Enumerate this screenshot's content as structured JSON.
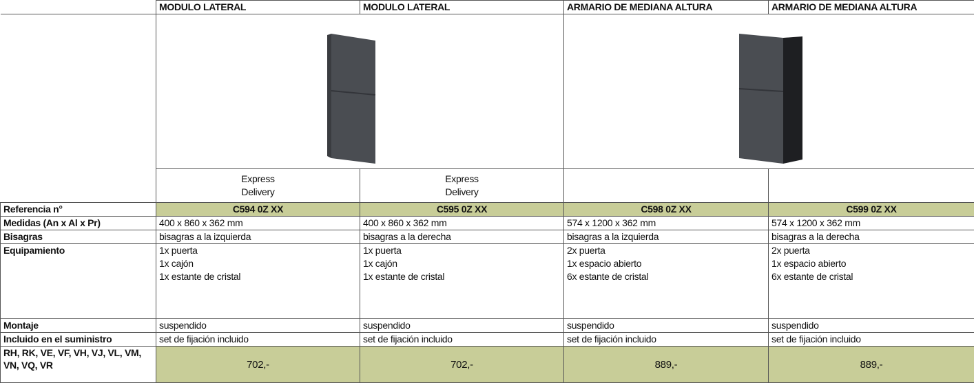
{
  "products": [
    {
      "name": "MODULO LATERAL",
      "badge": {
        "top": "Express",
        "bottom": "Delivery"
      }
    },
    {
      "name": "MODULO LATERAL",
      "badge": {
        "top": "Express",
        "bottom": "Delivery"
      }
    },
    {
      "name": "ARMARIO DE MEDIANA ALTURA"
    },
    {
      "name": "ARMARIO DE MEDIANA ALTURA"
    }
  ],
  "rows": [
    {
      "label": "Referencia n°",
      "cells": [
        "C594 0Z XX",
        "C595 0Z XX",
        "C598 0Z XX",
        "C599 0Z XX"
      ]
    },
    {
      "label": "Medidas (An x Al x Pr)",
      "cells": [
        "400 x 860 x 362 mm",
        "400 x 860 x 362 mm",
        "574 x 1200 x 362 mm",
        "574 x 1200 x 362 mm"
      ]
    },
    {
      "label": "Bisagras",
      "cells": [
        "bisagras a la izquierda",
        "bisagras a la derecha",
        "bisagras a la izquierda",
        "bisagras a la derecha"
      ]
    },
    {
      "label": "Equipamiento",
      "cells": [
        [
          "1x puerta",
          "1x cajón",
          "1x estante de cristal"
        ],
        [
          "1x puerta",
          "1x cajón",
          "1x estante de cristal"
        ],
        [
          "2x puerta",
          "1x espacio abierto",
          "6x estante de cristal"
        ],
        [
          "2x puerta",
          "1x espacio abierto",
          "6x estante de cristal"
        ]
      ]
    },
    {
      "label": "Montaje",
      "cells": [
        "suspendido",
        "suspendido",
        "suspendido",
        "suspendido"
      ]
    },
    {
      "label": "Incluido en el suministro",
      "cells": [
        "set de fijación incluido",
        "set de fijación incluido",
        "set de fijación incluido",
        "set de fijación incluido"
      ]
    },
    {
      "label": "RH, RK, VE, VF, VH, VJ, VL, VM, VN, VQ, VR",
      "cells": [
        "702,-",
        "702,-",
        "889,-",
        "889,-"
      ]
    }
  ]
}
